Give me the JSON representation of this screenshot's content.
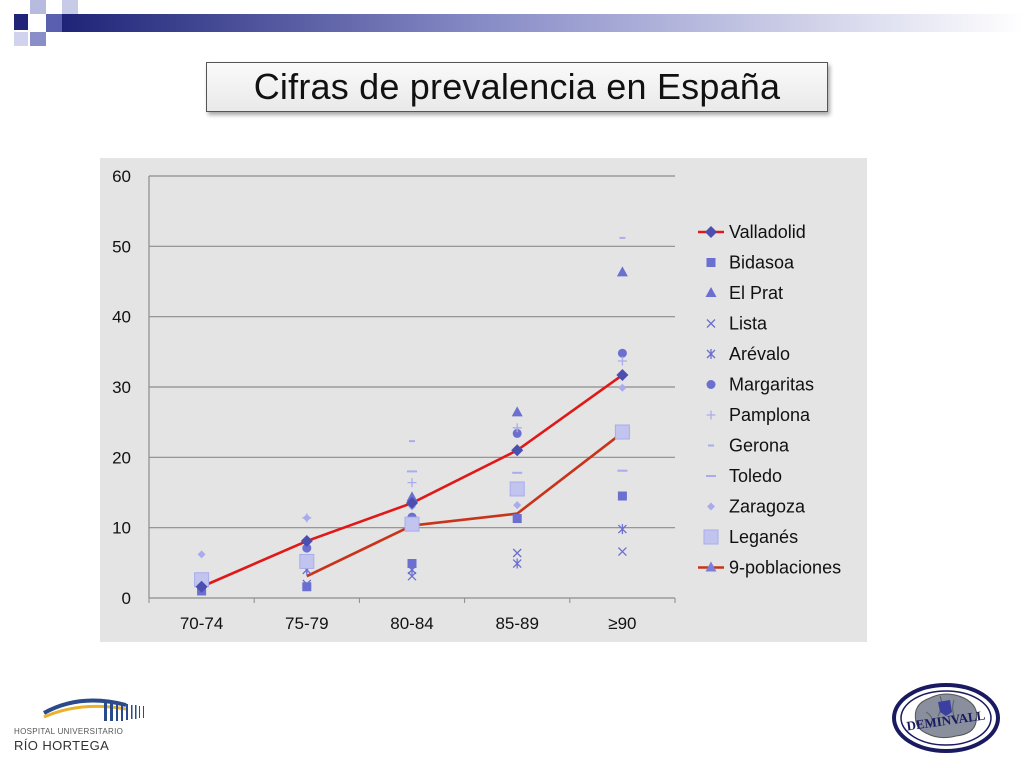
{
  "slide": {
    "title": "Cifras de prevalencia en España",
    "colors": {
      "band_dark": "#1f2478",
      "band_mid": "#5a5fb0",
      "band_light": "#b8bbe0",
      "panel": "#e4e4e4",
      "marker": "#6a6fd0",
      "marker_light": "#a9acec",
      "line_valladolid": "#e01818",
      "line_9poblaciones": "#c8341a"
    }
  },
  "logos": {
    "hospital_line1": "HOSPITAL UNIVERSITARIO",
    "hospital_line2": "RÍO HORTEGA",
    "deminvall_text": "DEMINVALL"
  },
  "chart_data": {
    "type": "line",
    "categories": [
      "70-74",
      "75-79",
      "80-84",
      "85-89",
      "≥90"
    ],
    "ylim": [
      0,
      60
    ],
    "yticks": [
      0,
      10,
      20,
      30,
      40,
      50,
      60
    ],
    "grid": true,
    "legend_position": "right",
    "series": [
      {
        "name": "Valladolid",
        "marker": "diamond",
        "line": true,
        "color": "#e01818",
        "markerColor": "#4a4fb0",
        "values": [
          1.6,
          8.1,
          13.5,
          21.0,
          31.7
        ]
      },
      {
        "name": "Bidasoa",
        "marker": "square",
        "line": false,
        "values": [
          1.0,
          1.6,
          4.9,
          11.3,
          14.5
        ]
      },
      {
        "name": "El Prat",
        "marker": "triangle",
        "line": false,
        "values": [
          null,
          null,
          14.3,
          26.4,
          46.3
        ]
      },
      {
        "name": "Lista",
        "marker": "x",
        "line": false,
        "values": [
          null,
          2.0,
          3.1,
          6.4,
          6.6
        ]
      },
      {
        "name": "Arévalo",
        "marker": "star",
        "line": false,
        "values": [
          null,
          4.0,
          4.0,
          4.9,
          9.8
        ]
      },
      {
        "name": "Margaritas",
        "marker": "circle",
        "line": false,
        "values": [
          null,
          7.1,
          11.5,
          23.4,
          34.8
        ]
      },
      {
        "name": "Pamplona",
        "marker": "plus",
        "line": false,
        "values": [
          null,
          11.4,
          16.4,
          24.2,
          33.7
        ]
      },
      {
        "name": "Gerona",
        "marker": "dash-short",
        "line": false,
        "values": [
          null,
          null,
          22.3,
          null,
          51.2
        ]
      },
      {
        "name": "Toledo",
        "marker": "dash",
        "line": false,
        "values": [
          null,
          null,
          18.0,
          17.8,
          18.1
        ]
      },
      {
        "name": "Zaragoza",
        "marker": "diamond-small",
        "line": false,
        "values": [
          6.2,
          11.4,
          13.0,
          13.2,
          29.9
        ]
      },
      {
        "name": "Leganés",
        "marker": "square-large",
        "line": false,
        "values": [
          2.6,
          5.2,
          10.5,
          15.5,
          23.6
        ]
      },
      {
        "name": "9-poblaciones",
        "marker": "triangle",
        "line": true,
        "color": "#c8341a",
        "values": [
          null,
          3.1,
          10.3,
          12.0,
          23.5
        ]
      }
    ]
  }
}
